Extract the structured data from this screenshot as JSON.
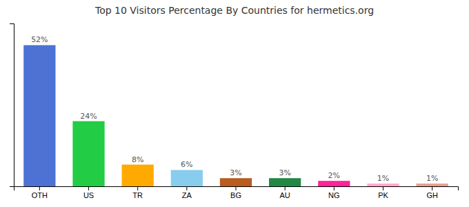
{
  "chart_data": {
    "type": "bar",
    "title": "Top 10 Visitors Percentage By Countries for hermetics.org",
    "categories": [
      "OTH",
      "US",
      "TR",
      "ZA",
      "BG",
      "AU",
      "NG",
      "PK",
      "GH"
    ],
    "values": [
      52,
      24,
      8,
      6,
      3,
      3,
      2,
      1,
      1
    ],
    "value_labels": [
      "52%",
      "24%",
      "8%",
      "6%",
      "3%",
      "3%",
      "2%",
      "1%",
      "1%"
    ],
    "colors": [
      "#4d72d4",
      "#22cc44",
      "#ffaa00",
      "#88ccee",
      "#b85c20",
      "#228844",
      "#ff2299",
      "#ffaacc",
      "#e8a090"
    ],
    "ylim": [
      0,
      60
    ],
    "data_labels": true,
    "tick_labels": "x",
    "grid": false
  }
}
